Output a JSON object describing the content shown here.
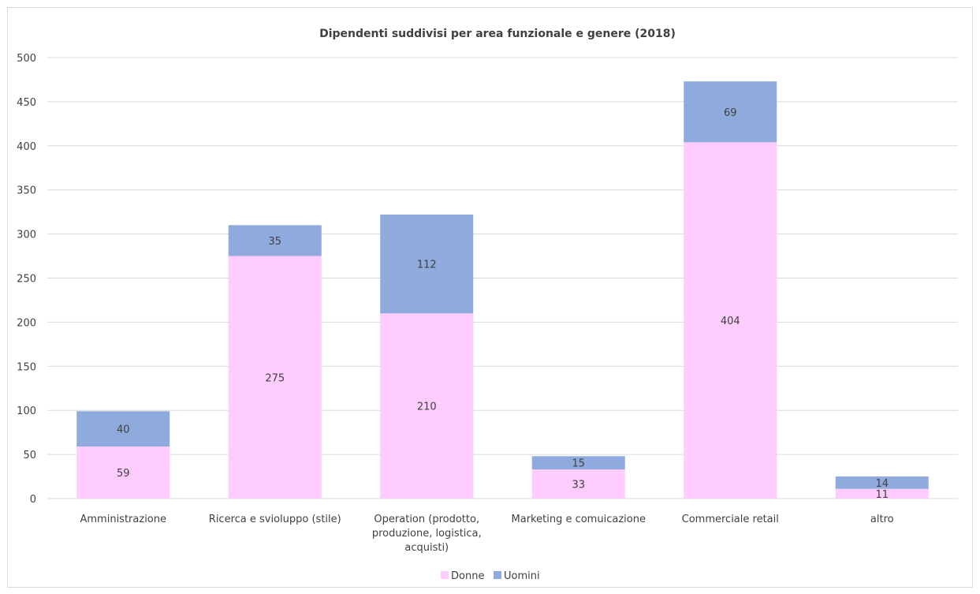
{
  "chart_data": {
    "type": "bar",
    "stacked": true,
    "title": "Dipendenti suddivisi per area funzionale e genere (2018)",
    "xlabel": "",
    "ylabel": "",
    "ylim": [
      0,
      500
    ],
    "yticks": [
      0,
      50,
      100,
      150,
      200,
      250,
      300,
      350,
      400,
      450,
      500
    ],
    "grid": true,
    "legend_position": "bottom",
    "categories": [
      [
        "Amministrazione"
      ],
      [
        "Ricerca e svioluppo (stile)"
      ],
      [
        "Operation (prodotto,",
        "produzione, logistica,",
        "acquisti)"
      ],
      [
        "Marketing e comuicazione"
      ],
      [
        "Commerciale retail"
      ],
      [
        "altro"
      ]
    ],
    "series": [
      {
        "name": "Donne",
        "color": "#ffccff",
        "values": [
          59,
          275,
          210,
          33,
          404,
          11
        ]
      },
      {
        "name": "Uomini",
        "color": "#8faadc",
        "values": [
          40,
          35,
          112,
          15,
          69,
          14
        ]
      }
    ]
  }
}
